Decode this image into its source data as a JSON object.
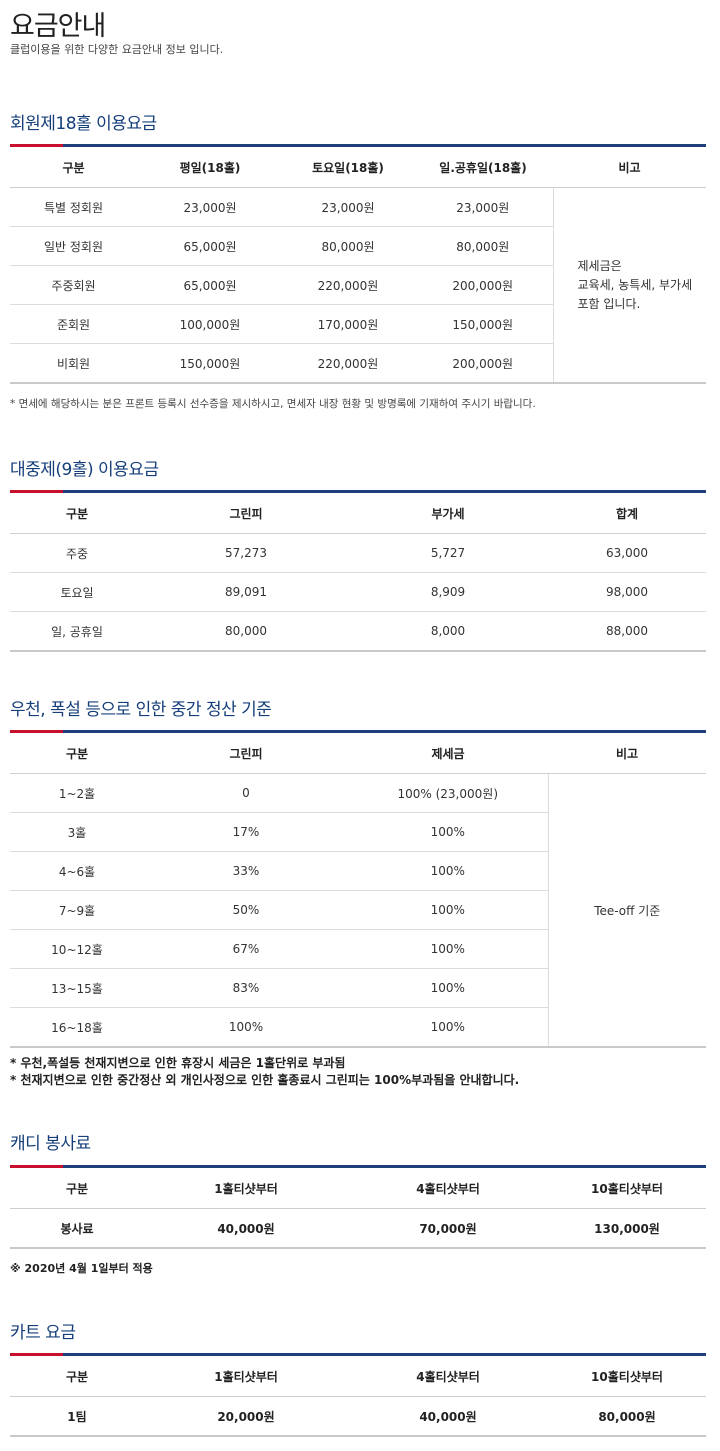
{
  "header": {
    "title": "요금안내",
    "subtitle": "클럽이용을 위한 다양한 요금안내 정보 입니다."
  },
  "member18": {
    "title": "회원제18홀 이용요금",
    "headers": [
      "구분",
      "평일(18홀)",
      "토요일(18홀)",
      "일.공휴일(18홀)",
      "비고"
    ],
    "rows": [
      [
        "특별 정회원",
        "23,000원",
        "23,000원",
        "23,000원"
      ],
      [
        "일반 정회원",
        "65,000원",
        "80,000원",
        "80,000원"
      ],
      [
        "주중회원",
        "65,000원",
        "220,000원",
        "200,000원"
      ],
      [
        "준회원",
        "100,000원",
        "170,000원",
        "150,000원"
      ],
      [
        "비회원",
        "150,000원",
        "220,000원",
        "200,000원"
      ]
    ],
    "note_lines": [
      "제세금은",
      "교육세, 농특세, 부가세",
      "포함 입니다."
    ],
    "footnote": "* 면세에 해당하시는 분은 프론트 등록시 선수증을 제시하시고, 면세자 내장 현황 및 방명록에 기재하여 주시기 바랍니다."
  },
  "public9": {
    "title": "대중제(9홀) 이용요금",
    "headers": [
      "구분",
      "그린피",
      "부가세",
      "합계"
    ],
    "rows": [
      [
        "주중",
        "57,273",
        "5,727",
        "63,000"
      ],
      [
        "토요일",
        "89,091",
        "8,909",
        "98,000"
      ],
      [
        "일, 공휴일",
        "80,000",
        "8,000",
        "88,000"
      ]
    ]
  },
  "settlement": {
    "title": "우천, 폭설 등으로 인한 중간 정산 기준",
    "headers": [
      "구분",
      "그린피",
      "제세금",
      "비고"
    ],
    "rows": [
      [
        "1~2홀",
        "0",
        "100% (23,000원)"
      ],
      [
        "3홀",
        "17%",
        "100%"
      ],
      [
        "4~6홀",
        "33%",
        "100%"
      ],
      [
        "7~9홀",
        "50%",
        "100%"
      ],
      [
        "10~12홀",
        "67%",
        "100%"
      ],
      [
        "13~15홀",
        "83%",
        "100%"
      ],
      [
        "16~18홀",
        "100%",
        "100%"
      ]
    ],
    "note": "Tee-off 기준",
    "footnotes": [
      "* 우천,폭설등 천재지변으로 인한 휴장시 세금은 1홀단위로 부과됨",
      "* 천재지변으로 인한 중간정산 외 개인사정으로 인한 홀종료시 그린피는 100%부과됨을 안내합니다."
    ]
  },
  "caddie": {
    "title": "캐디 봉사료",
    "headers": [
      "구분",
      "1홀티샷부터",
      "4홀티샷부터",
      "10홀티샷부터"
    ],
    "rows": [
      [
        "봉사료",
        "40,000원",
        "70,000원",
        "130,000원"
      ]
    ],
    "footnote": "※ 2020년 4월 1일부터 적용"
  },
  "cart": {
    "title": "카트 요금",
    "headers": [
      "구분",
      "1홀티샷부터",
      "4홀티샷부터",
      "10홀티샷부터"
    ],
    "rows": [
      [
        "1팀",
        "20,000원",
        "40,000원",
        "80,000원"
      ]
    ]
  }
}
